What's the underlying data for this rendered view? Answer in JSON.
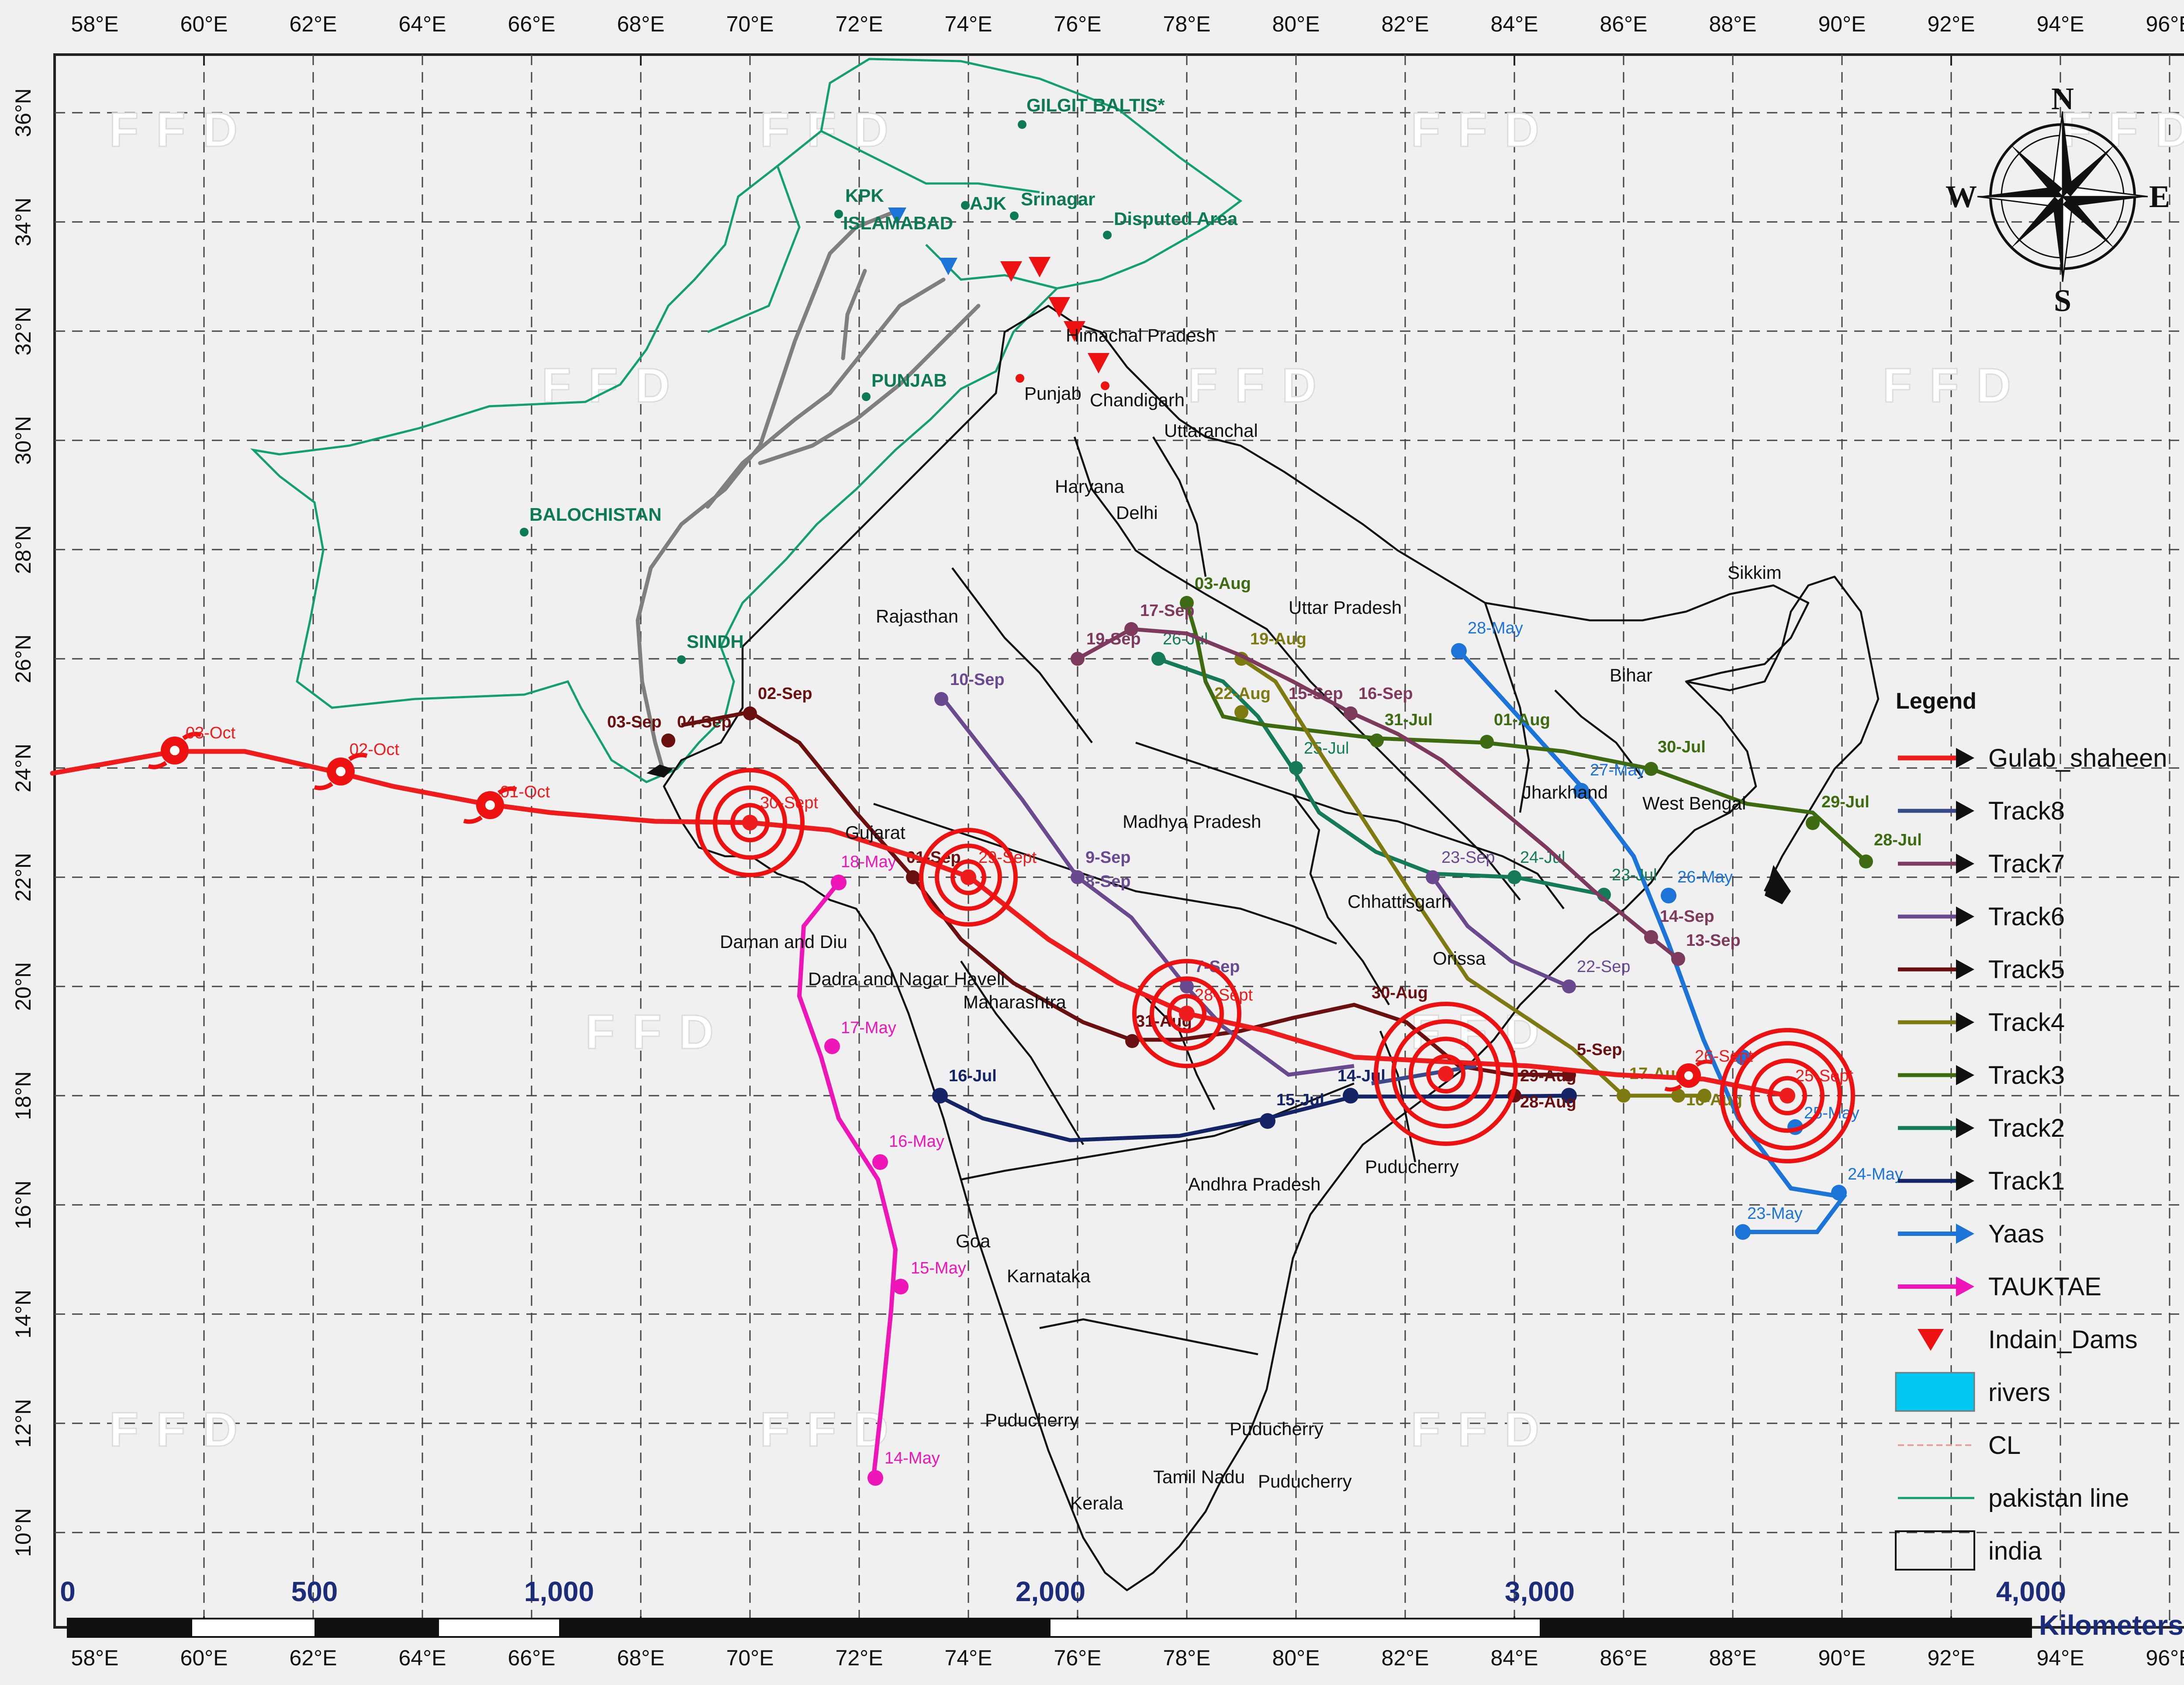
{
  "axes": {
    "x_ticks": [
      "58°E",
      "60°E",
      "62°E",
      "64°E",
      "66°E",
      "68°E",
      "70°E",
      "72°E",
      "74°E",
      "76°E",
      "78°E",
      "80°E",
      "82°E",
      "84°E",
      "86°E",
      "88°E",
      "90°E",
      "92°E",
      "94°E",
      "96°E"
    ],
    "y_ticks": [
      "36°N",
      "34°N",
      "32°N",
      "30°N",
      "28°N",
      "26°N",
      "24°N",
      "22°N",
      "20°N",
      "18°N",
      "16°N",
      "14°N",
      "12°N",
      "10°N"
    ]
  },
  "watermark": "FFD",
  "provinces": [
    "GILGIT BALTIS*",
    "KPK",
    "ISLAMABAD",
    "AJK",
    "Srinagar",
    "Disputed Area",
    "PUNJAB",
    "BALOCHISTAN",
    "SINDH"
  ],
  "places": [
    "Himachal Pradesh",
    "Punjab",
    "Chandigarh",
    "Uttaranchal",
    "Haryana",
    "Delhi",
    "Uttar Pradesh",
    "Sikkim",
    "Rajasthan",
    "Bihar",
    "Jharkhand",
    "West Bengal",
    "Gujarat",
    "Madhya Pradesh",
    "Chhattisgarh",
    "Orissa",
    "Daman and Diu",
    "Dadra and Nagar Haveli",
    "Maharashtra",
    "Andhra Pradesh",
    "Puducherry",
    "Goa",
    "Karnataka",
    "Puducherry",
    "Puducherry",
    "Tamil Nadu",
    "Puducherry",
    "Kerala"
  ],
  "tracks": {
    "gulab": {
      "color": "#ee1c1c",
      "labels": [
        "03-Oct",
        "02-Oct",
        "01-Oct",
        "30-Sept",
        "29-Sept",
        "28-Sept",
        "26-Sept",
        "25-Sept"
      ]
    },
    "track8": {
      "color": "#3c4a8c",
      "labels": []
    },
    "track7": {
      "color": "#7e3a5c",
      "labels": [
        "17-Sep",
        "19-Sep",
        "15-Sep",
        "16-Sep",
        "14-Sep",
        "13-Sep"
      ]
    },
    "track6": {
      "color": "#6a4a8e",
      "labels": [
        "10-Sep",
        "9-Sep",
        "8-Sep",
        "7-Sep",
        "23-Sep",
        "22-Sep"
      ]
    },
    "track5": {
      "color": "#6a1010",
      "labels": [
        "02-Sep",
        "03-Sep",
        "04-Sep",
        "01-Sep",
        "31-Aug",
        "30-Aug",
        "29-Aug",
        "28-Aug",
        "5-Sep"
      ]
    },
    "track4": {
      "color": "#7d7a12",
      "labels": [
        "19-Aug",
        "22-Aug",
        "17-Aug",
        "16-Aug"
      ]
    },
    "track3": {
      "color": "#3e6b12",
      "labels": [
        "03-Aug",
        "31-Jul",
        "01-Aug",
        "30-Jul",
        "29-Jul",
        "28-Jul"
      ]
    },
    "track2": {
      "color": "#147a5a",
      "labels": [
        "26-Jul",
        "25-Jul",
        "24-Jul",
        "23-Jul"
      ]
    },
    "track1": {
      "color": "#142466",
      "labels": [
        "16-Jul",
        "15-Jul",
        "14-Jul"
      ]
    },
    "yaas": {
      "color": "#1c74d9",
      "labels": [
        "28-May",
        "27-May",
        "26-May",
        "25-May",
        "24-May",
        "23-May"
      ]
    },
    "tauktae": {
      "color": "#ee16b8",
      "labels": [
        "18-May",
        "17-May",
        "16-May",
        "15-May",
        "14-May"
      ]
    }
  },
  "legend": {
    "title": "Legend",
    "items": [
      "Gulab_shaheen",
      "Track8",
      "Track7",
      "Track6",
      "Track5",
      "Track4",
      "Track3",
      "Track2",
      "Track1",
      "Yaas",
      "TAUKTAE",
      "Indain_Dams",
      "rivers",
      "CL",
      "pakistan line",
      "india"
    ]
  },
  "compass": {
    "n": "N",
    "s": "S",
    "e": "E",
    "w": "W"
  },
  "scale_bar": {
    "labels": [
      "0",
      "500",
      "1,000",
      "2,000",
      "3,000",
      "4,000"
    ],
    "unit": "Kilometers"
  },
  "colors": {
    "background": "#f0f0f0",
    "pakistan_line": "#14a06e",
    "india_border": "#111111",
    "rivers": "#808080",
    "dams": "#ee1111",
    "legend_rivers": "#00c8f0"
  }
}
